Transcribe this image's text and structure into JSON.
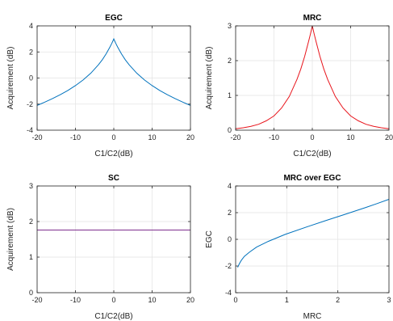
{
  "chart_data": [
    {
      "type": "line",
      "title": "EGC",
      "xlabel": "C1/C2(dB)",
      "ylabel": "Acquirement (dB)",
      "xlim": [
        -20,
        20
      ],
      "ylim": [
        -4,
        4
      ],
      "xticks": [
        "-20",
        "-10",
        "0",
        "10",
        "20"
      ],
      "yticks": [
        "-4",
        "-2",
        "0",
        "2",
        "4"
      ],
      "grid": true,
      "series": [
        {
          "color": "#0072bd",
          "x": [
            -20,
            -18,
            -16,
            -14,
            -12,
            -10,
            -8,
            -6,
            -4,
            -3,
            -2,
            -1,
            -0.5,
            0,
            0.5,
            1,
            2,
            3,
            4,
            6,
            8,
            10,
            12,
            14,
            16,
            18,
            20
          ],
          "y": [
            -2.1,
            -1.85,
            -1.58,
            -1.28,
            -0.96,
            -0.58,
            -0.15,
            0.37,
            1.02,
            1.4,
            1.85,
            2.38,
            2.67,
            3.0,
            2.67,
            2.38,
            1.85,
            1.4,
            1.02,
            0.37,
            -0.15,
            -0.58,
            -0.96,
            -1.28,
            -1.58,
            -1.85,
            -2.1
          ]
        }
      ]
    },
    {
      "type": "line",
      "title": "MRC",
      "xlabel": "C1/C2(dB)",
      "ylabel": "Acquirement (dB)",
      "xlim": [
        -20,
        20
      ],
      "ylim": [
        0,
        3
      ],
      "xticks": [
        "-20",
        "-10",
        "0",
        "10",
        "20"
      ],
      "yticks": [
        "0",
        "1",
        "2",
        "3"
      ],
      "grid": true,
      "series": [
        {
          "color": "#e8141b",
          "x": [
            -20,
            -18,
            -16,
            -14,
            -12,
            -10,
            -8,
            -6,
            -4,
            -3,
            -2,
            -1,
            -0.5,
            0,
            0.5,
            1,
            2,
            3,
            4,
            6,
            8,
            10,
            12,
            14,
            16,
            18,
            20
          ],
          "y": [
            0.04,
            0.07,
            0.11,
            0.17,
            0.27,
            0.41,
            0.64,
            0.97,
            1.46,
            1.76,
            2.12,
            2.54,
            2.76,
            3.0,
            2.76,
            2.54,
            2.12,
            1.76,
            1.46,
            0.97,
            0.64,
            0.41,
            0.27,
            0.17,
            0.11,
            0.07,
            0.04
          ]
        }
      ]
    },
    {
      "type": "line",
      "title": "SC",
      "xlabel": "C1/C2(dB)",
      "ylabel": "Acquirement (dB)",
      "xlim": [
        -20,
        20
      ],
      "ylim": [
        0,
        3
      ],
      "xticks": [
        "-20",
        "-10",
        "0",
        "10",
        "20"
      ],
      "yticks": [
        "0",
        "1",
        "2",
        "3"
      ],
      "grid": true,
      "series": [
        {
          "color": "#7e2f8e",
          "x": [
            -20,
            20
          ],
          "y": [
            1.76,
            1.76
          ]
        }
      ]
    },
    {
      "type": "line",
      "title": "MRC over EGC",
      "xlabel": "MRC",
      "ylabel": "EGC",
      "xlim": [
        0,
        3
      ],
      "ylim": [
        -4,
        4
      ],
      "xticks": [
        "0",
        "1",
        "2",
        "3"
      ],
      "yticks": [
        "-4",
        "-2",
        "0",
        "2",
        "4"
      ],
      "grid": true,
      "series": [
        {
          "color": "#0072bd",
          "x": [
            0.04,
            0.07,
            0.11,
            0.17,
            0.27,
            0.41,
            0.64,
            0.97,
            1.46,
            1.76,
            2.12,
            2.54,
            2.76,
            3.0
          ],
          "y": [
            -2.1,
            -1.85,
            -1.58,
            -1.28,
            -0.96,
            -0.58,
            -0.15,
            0.37,
            1.02,
            1.4,
            1.85,
            2.38,
            2.67,
            3.0
          ]
        }
      ]
    }
  ]
}
